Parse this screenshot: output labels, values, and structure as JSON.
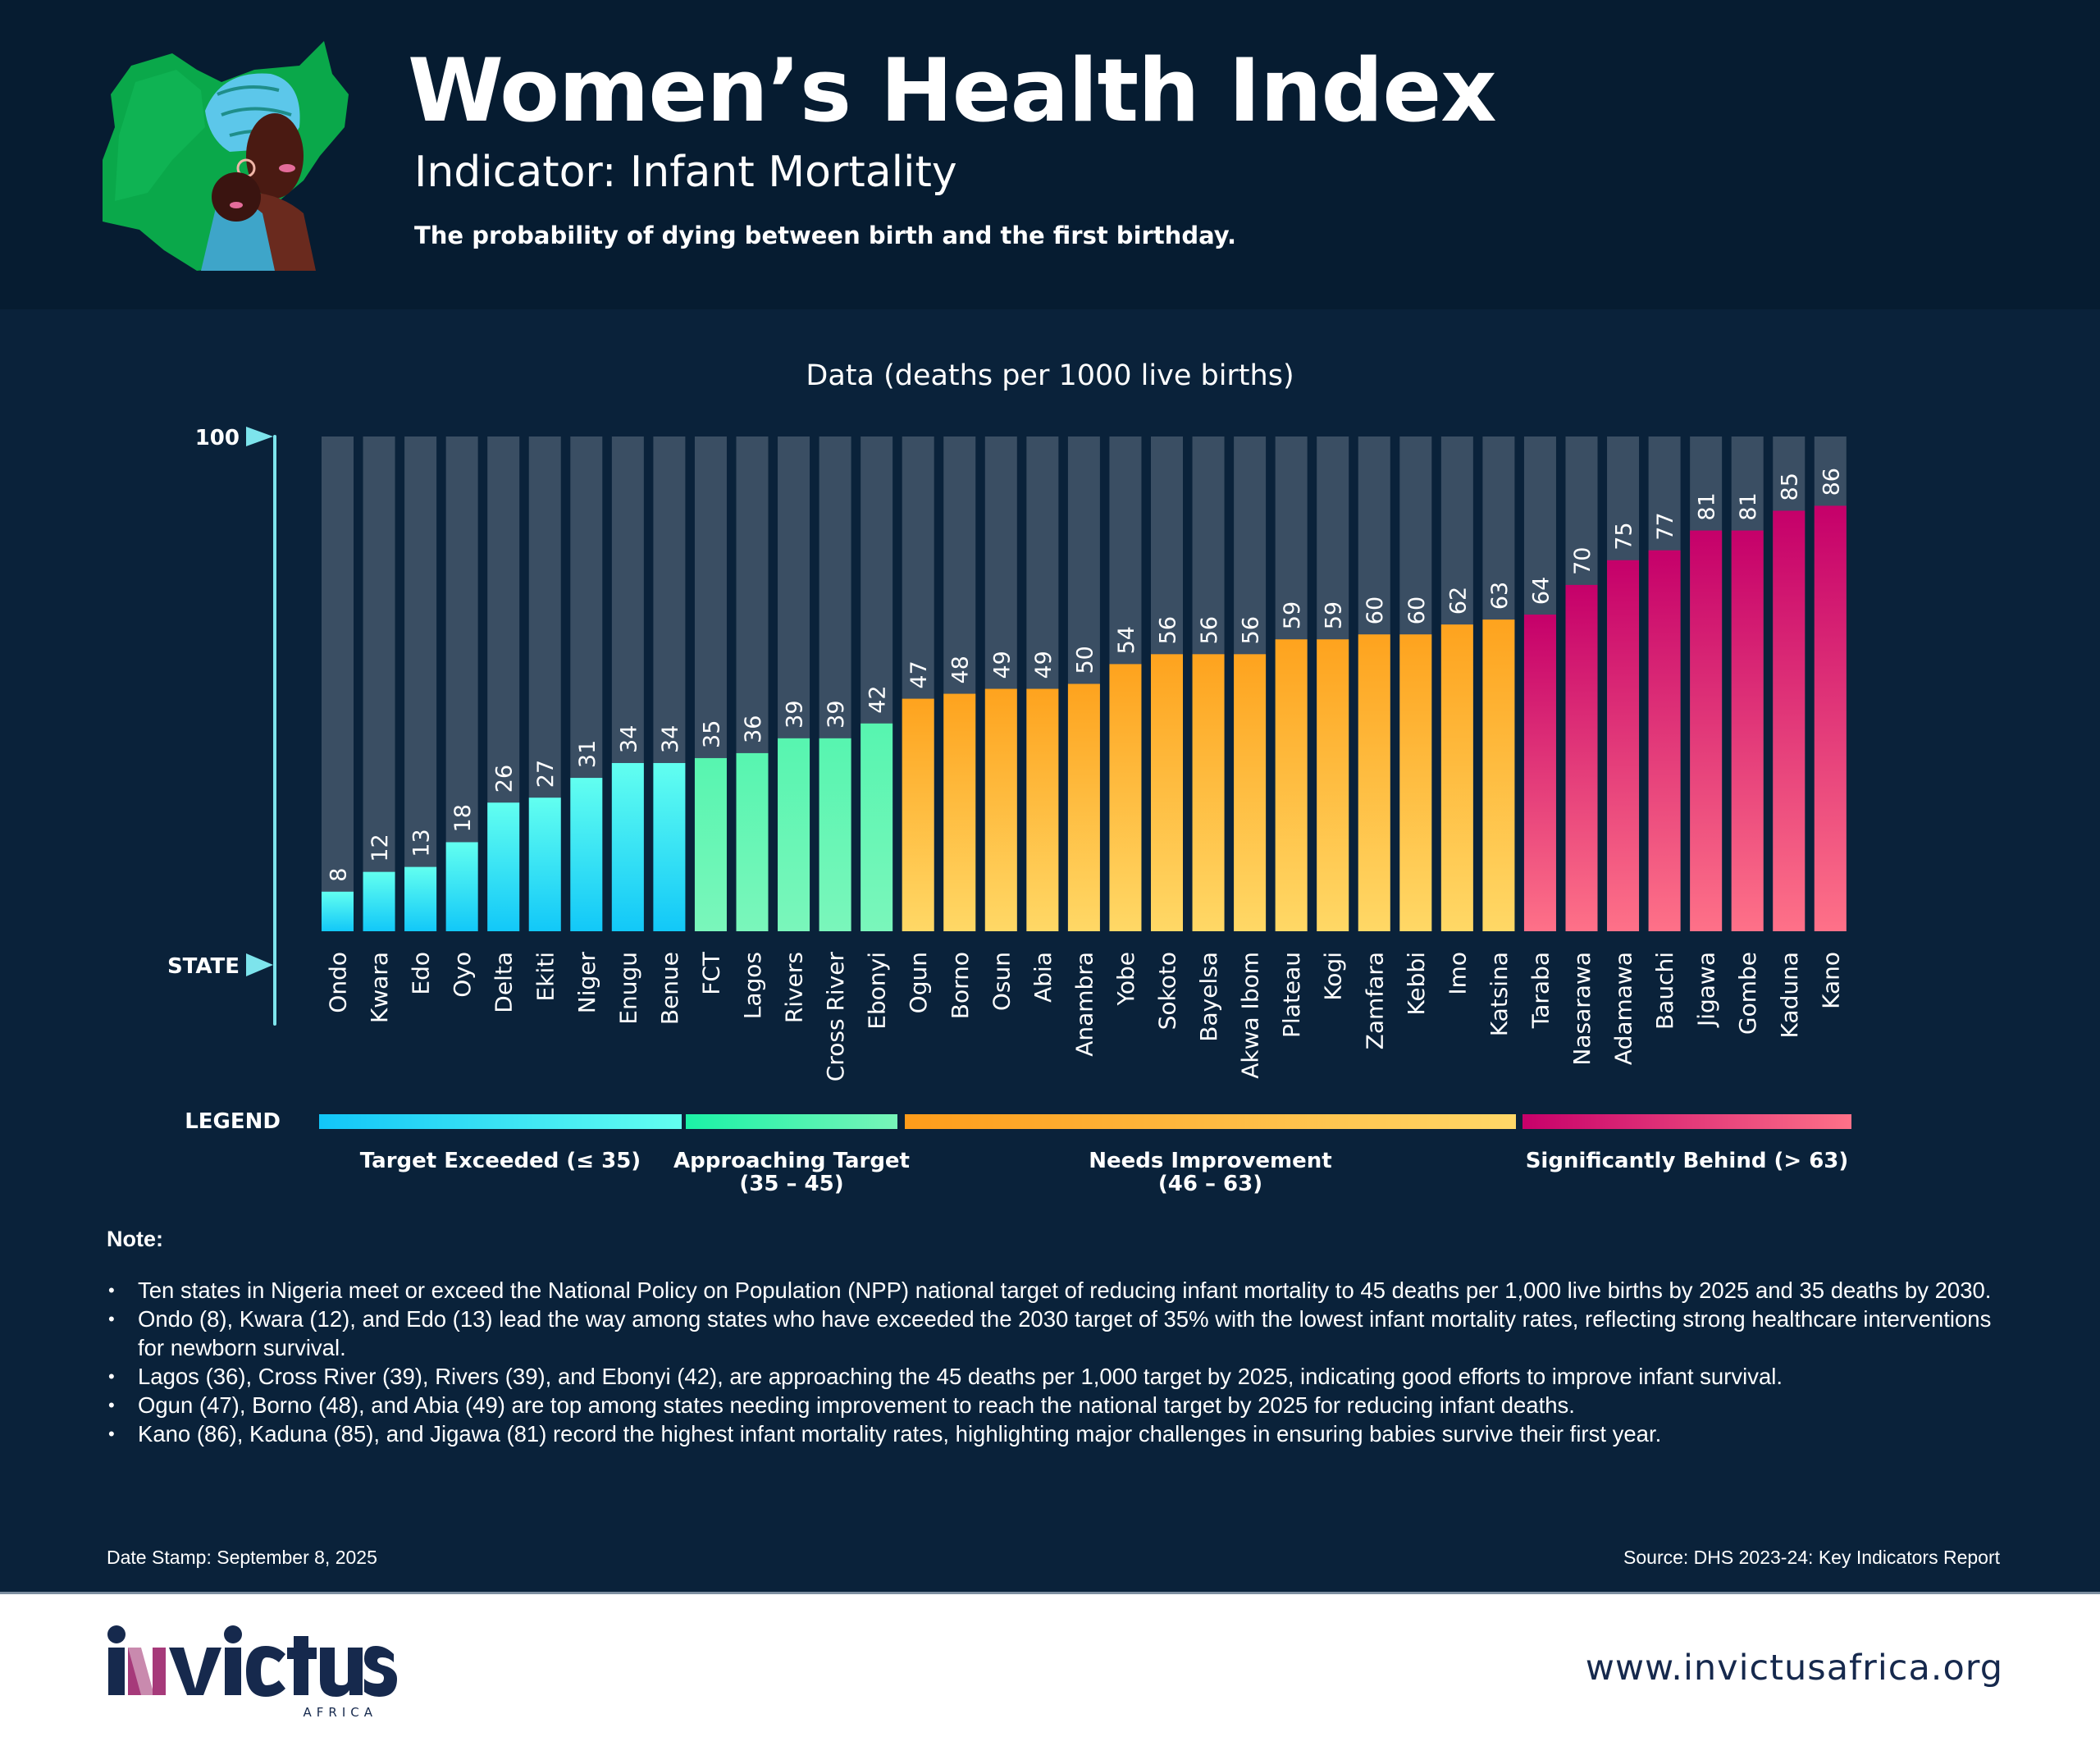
{
  "header": {
    "title": "Women’s Health Index",
    "subtitle": "Indicator: Infant Mortality",
    "description": "The probability of dying between birth and the first birthday.",
    "illustration": "woman-and-baby-on-nigeria-map"
  },
  "chart_data": {
    "type": "bar",
    "title": "Data (deaths per 1000 live births)",
    "xlabel": "STATE",
    "ylabel": "",
    "y_axis_top_label": "100",
    "ylim": [
      0,
      100
    ],
    "grid": false,
    "orientation": "vertical",
    "categories": [
      "Ondo",
      "Kwara",
      "Edo",
      "Oyo",
      "Delta",
      "Ekiti",
      "Niger",
      "Enugu",
      "Benue",
      "FCT",
      "Lagos",
      "Rivers",
      "Cross River",
      "Ebonyi",
      "Ogun",
      "Borno",
      "Osun",
      "Abia",
      "Anambra",
      "Yobe",
      "Sokoto",
      "Bayelsa",
      "Akwa Ibom",
      "Plateau",
      "Kogi",
      "Zamfara",
      "Kebbi",
      "Imo",
      "Katsina",
      "Taraba",
      "Nasarawa",
      "Adamawa",
      "Bauchi",
      "Jigawa",
      "Gombe",
      "Kaduna",
      "Kano"
    ],
    "values": [
      8,
      12,
      13,
      18,
      26,
      27,
      31,
      34,
      34,
      35,
      36,
      39,
      39,
      42,
      47,
      48,
      49,
      49,
      50,
      54,
      56,
      56,
      56,
      59,
      59,
      60,
      60,
      62,
      63,
      64,
      70,
      75,
      77,
      81,
      81,
      85,
      86
    ],
    "groups": [
      0,
      0,
      0,
      0,
      0,
      0,
      0,
      0,
      0,
      1,
      1,
      1,
      1,
      1,
      2,
      2,
      2,
      2,
      2,
      2,
      2,
      2,
      2,
      2,
      2,
      2,
      2,
      2,
      2,
      3,
      3,
      3,
      3,
      3,
      3,
      3,
      3
    ],
    "legend_title": "LEGEND",
    "legend_position": "bottom",
    "legend": [
      {
        "label": "Target Exceeded (≤ 35)",
        "label_line2": "",
        "colors": [
          "#12c6f8",
          "#63fff0"
        ]
      },
      {
        "label": "Approaching Target",
        "label_line2": "(35 – 45)",
        "colors": [
          "#1bf2a6",
          "#78f5b9"
        ]
      },
      {
        "label": "Needs Improvement",
        "label_line2": "(46 – 63)",
        "colors": [
          "#fe9c1a",
          "#ffd868"
        ]
      },
      {
        "label": "Significantly Behind (> 63)",
        "label_line2": "",
        "colors": [
          "#c7006a",
          "#fe7188"
        ]
      }
    ],
    "bar_fill_gradients": [
      [
        "#62fff0",
        "#12c8f8"
      ],
      [
        "#57f5b0",
        "#7af6bb"
      ],
      [
        "#fea31e",
        "#ffd866"
      ],
      [
        "#c5006a",
        "#fe7188"
      ]
    ],
    "track_color": "#3a4e63",
    "axis_color": "#7de4ec"
  },
  "notes": {
    "title": "Note:",
    "items": [
      "Ten states in Nigeria meet or exceed the National Policy on Population (NPP) national target of reducing infant mortality to 45 deaths per 1,000 live births by 2025 and 35 deaths by 2030.",
      "Ondo (8), Kwara (12), and Edo (13) lead the way among states who have exceeded the 2030 target of 35% with the lowest infant mortality rates, reflecting strong healthcare interventions for newborn survival.",
      "Lagos (36), Cross River (39), Rivers (39), and Ebonyi (42), are approaching the 45 deaths per 1,000 target by 2025, indicating good efforts to improve infant survival.",
      "Ogun (47), Borno (48), and Abia (49) are top among states needing improvement to reach the national target by 2025 for reducing infant deaths.",
      "Kano (86), Kaduna (85), and Jigawa (81) record the highest infant mortality rates, highlighting major challenges in ensuring babies survive their first year."
    ]
  },
  "footer": {
    "date_stamp": "Date Stamp: September 8, 2025",
    "source": "Source: DHS 2023-24: Key Indicators Report",
    "logo_text": "invictus",
    "logo_subtext": "AFRICA",
    "website": "www.invictusafrica.org"
  },
  "colors": {
    "header_bg": "#061c31",
    "page_bg": "#0a223a",
    "brand_navy": "#16294d",
    "brand_magenta": "#a63a7a"
  }
}
